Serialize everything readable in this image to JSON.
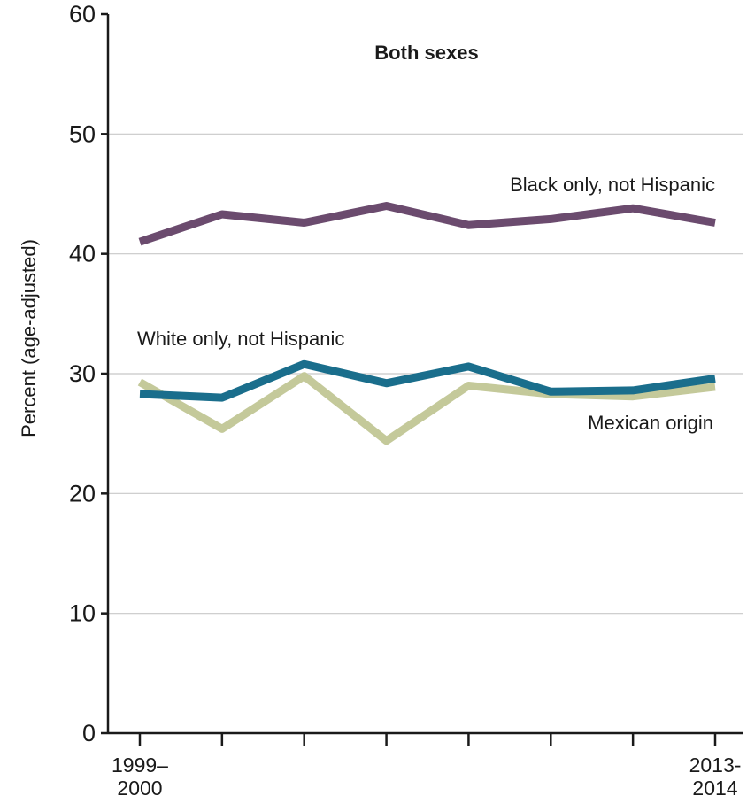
{
  "chart_data": {
    "type": "line",
    "title": "Both sexes",
    "ylabel": "Percent (age-adjusted)",
    "xlabel": "",
    "ylim": [
      0,
      60
    ],
    "yticks": [
      0,
      10,
      20,
      30,
      40,
      50,
      60
    ],
    "grid": true,
    "x_count": 8,
    "x_tick_labels": [
      {
        "index": 0,
        "lines": [
          "1999–",
          "2000"
        ]
      },
      {
        "index": 7,
        "lines": [
          "2013-",
          "2014"
        ]
      }
    ],
    "series": [
      {
        "name": "Black only, not Hispanic",
        "color": "#6b4b6e",
        "values": [
          41.0,
          43.3,
          42.6,
          44.0,
          42.4,
          42.9,
          43.8,
          42.6
        ]
      },
      {
        "name": "White only, not Hispanic",
        "color": "#1a6e8c",
        "values": [
          28.3,
          28.0,
          30.8,
          29.2,
          30.6,
          28.5,
          28.6,
          29.6
        ]
      },
      {
        "name": "Mexican origin",
        "color": "#c4c99a",
        "values": [
          29.3,
          25.4,
          29.8,
          24.4,
          29.0,
          28.3,
          28.1,
          28.9
        ]
      }
    ]
  }
}
